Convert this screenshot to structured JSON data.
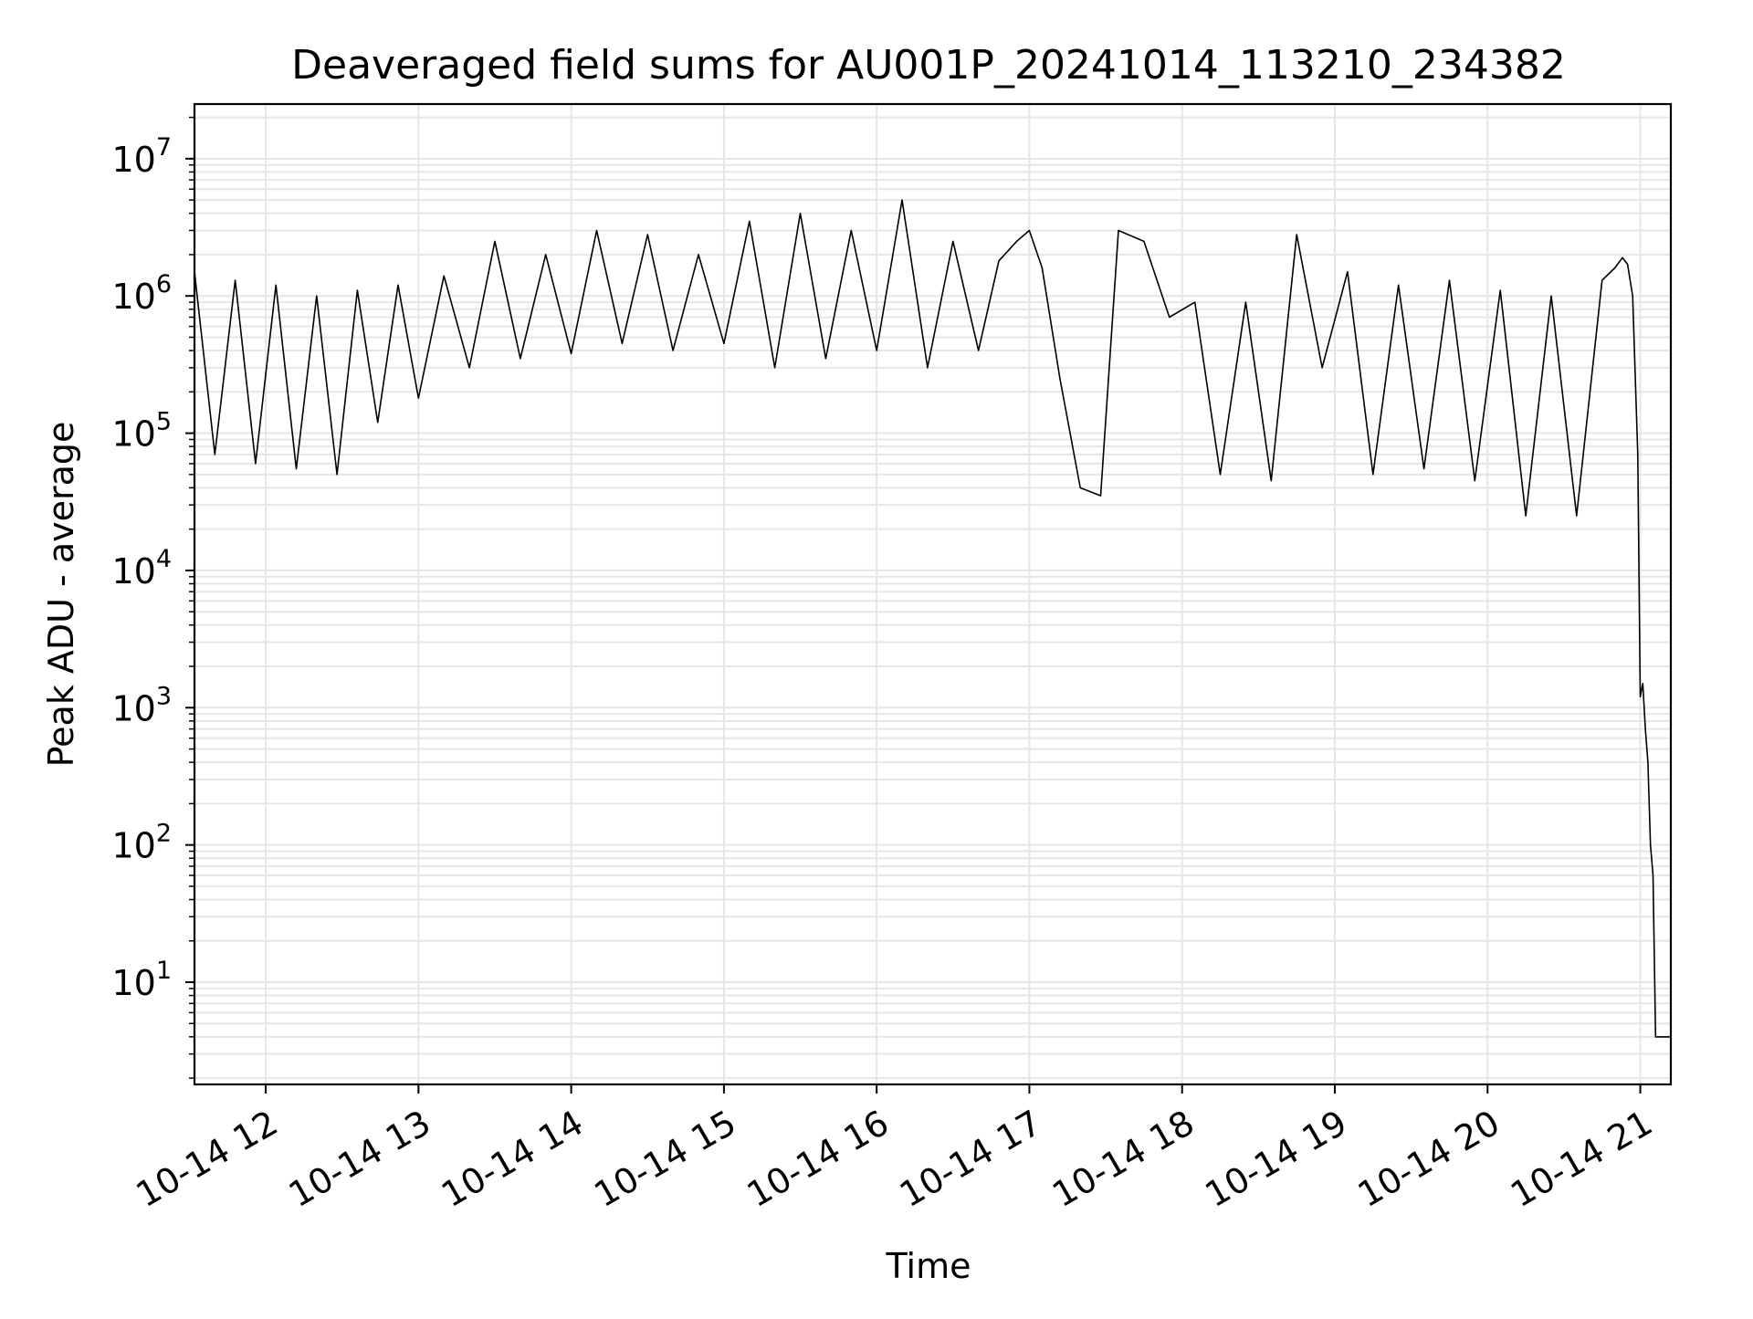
{
  "chart_data": {
    "type": "line",
    "title": "Deaveraged field sums for AU001P_20241014_113210_234382",
    "xlabel": "Time",
    "ylabel": "Peak ADU - average",
    "yscale": "log",
    "ylim": [
      1.8,
      25000000
    ],
    "xlim": [
      "2024-10-14 11:32",
      "2024-10-14 21:12"
    ],
    "x_ticks": [
      "10-14 12",
      "10-14 13",
      "10-14 14",
      "10-14 15",
      "10-14 16",
      "10-14 17",
      "10-14 18",
      "10-14 19",
      "10-14 20",
      "10-14 21"
    ],
    "y_ticks": [
      {
        "base": "10",
        "exp": "1"
      },
      {
        "base": "10",
        "exp": "2"
      },
      {
        "base": "10",
        "exp": "3"
      },
      {
        "base": "10",
        "exp": "4"
      },
      {
        "base": "10",
        "exp": "5"
      },
      {
        "base": "10",
        "exp": "6"
      },
      {
        "base": "10",
        "exp": "7"
      }
    ],
    "grid": true,
    "line_color": "#000000",
    "grid_color": "#e6e6e6",
    "series": [
      {
        "x": [
          "2024-10-14 11:32",
          "2024-10-14 11:40",
          "2024-10-14 11:48",
          "2024-10-14 11:56",
          "2024-10-14 12:04",
          "2024-10-14 12:12",
          "2024-10-14 12:20",
          "2024-10-14 12:28",
          "2024-10-14 12:36",
          "2024-10-14 12:44",
          "2024-10-14 12:52",
          "2024-10-14 13:00",
          "2024-10-14 13:10",
          "2024-10-14 13:20",
          "2024-10-14 13:30",
          "2024-10-14 13:40",
          "2024-10-14 13:50",
          "2024-10-14 14:00",
          "2024-10-14 14:10",
          "2024-10-14 14:20",
          "2024-10-14 14:30",
          "2024-10-14 14:40",
          "2024-10-14 14:50",
          "2024-10-14 15:00",
          "2024-10-14 15:10",
          "2024-10-14 15:20",
          "2024-10-14 15:30",
          "2024-10-14 15:40",
          "2024-10-14 15:50",
          "2024-10-14 16:00",
          "2024-10-14 16:10",
          "2024-10-14 16:20",
          "2024-10-14 16:30",
          "2024-10-14 16:40",
          "2024-10-14 16:48",
          "2024-10-14 16:55",
          "2024-10-14 17:00",
          "2024-10-14 17:05",
          "2024-10-14 17:12",
          "2024-10-14 17:20",
          "2024-10-14 17:28",
          "2024-10-14 17:35",
          "2024-10-14 17:45",
          "2024-10-14 17:55",
          "2024-10-14 18:05",
          "2024-10-14 18:15",
          "2024-10-14 18:25",
          "2024-10-14 18:35",
          "2024-10-14 18:45",
          "2024-10-14 18:55",
          "2024-10-14 19:05",
          "2024-10-14 19:15",
          "2024-10-14 19:25",
          "2024-10-14 19:35",
          "2024-10-14 19:45",
          "2024-10-14 19:55",
          "2024-10-14 20:05",
          "2024-10-14 20:15",
          "2024-10-14 20:25",
          "2024-10-14 20:35",
          "2024-10-14 20:45",
          "2024-10-14 20:50",
          "2024-10-14 20:53",
          "2024-10-14 20:55",
          "2024-10-14 20:57",
          "2024-10-14 20:59",
          "2024-10-14 21:00",
          "2024-10-14 21:01",
          "2024-10-14 21:02",
          "2024-10-14 21:03",
          "2024-10-14 21:04",
          "2024-10-14 21:05",
          "2024-10-14 21:06",
          "2024-10-14 21:08",
          "2024-10-14 21:10",
          "2024-10-14 21:12"
        ],
        "values": [
          1500000,
          70000,
          1300000,
          60000,
          1200000,
          55000,
          1000000,
          50000,
          1100000,
          120000,
          1200000,
          180000,
          1400000,
          300000,
          2500000,
          350000,
          2000000,
          380000,
          3000000,
          450000,
          2800000,
          400000,
          2000000,
          450000,
          3500000,
          300000,
          4000000,
          350000,
          3000000,
          400000,
          5000000,
          300000,
          2500000,
          400000,
          1800000,
          2500000,
          3000000,
          1600000,
          250000,
          40000,
          35000,
          3000000,
          2500000,
          700000,
          900000,
          50000,
          900000,
          45000,
          2800000,
          300000,
          1500000,
          50000,
          1200000,
          55000,
          1300000,
          45000,
          1100000,
          25000,
          1000000,
          25000,
          1300000,
          1600000,
          1900000,
          1700000,
          1000000,
          70000,
          1200,
          1500,
          700,
          400,
          100,
          60,
          4,
          4,
          4,
          4
        ]
      }
    ]
  }
}
